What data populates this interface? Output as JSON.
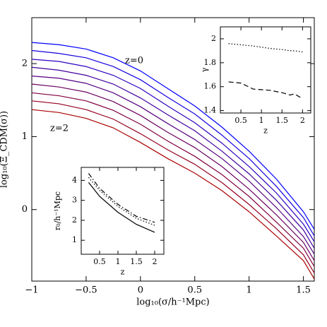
{
  "chart_data": [
    {
      "type": "line",
      "xlabel": "log₁₀(σ/h⁻¹Mpc)",
      "ylabel": "log₁₀(Ξ_CDM(σ))",
      "annotations": [
        "z=0",
        "z=2"
      ],
      "x": [
        -1,
        -0.75,
        -0.5,
        -0.25,
        0,
        0.25,
        0.5,
        0.75,
        1,
        1.25,
        1.5,
        1.6
      ],
      "series": [
        {
          "color": "#0000ff",
          "values": [
            2.29,
            2.26,
            2.2,
            2.08,
            1.9,
            1.66,
            1.42,
            1.13,
            0.8,
            0.42,
            -0.03,
            -0.27
          ]
        },
        {
          "color": "#1500df",
          "values": [
            2.18,
            2.14,
            2.08,
            1.96,
            1.78,
            1.54,
            1.31,
            1.02,
            0.7,
            0.32,
            -0.11,
            -0.36
          ]
        },
        {
          "color": "#2b00bf",
          "values": [
            2.06,
            2.03,
            1.96,
            1.84,
            1.66,
            1.42,
            1.19,
            0.91,
            0.59,
            0.23,
            -0.2,
            -0.44
          ]
        },
        {
          "color": "#40009f",
          "values": [
            1.95,
            1.91,
            1.84,
            1.72,
            1.53,
            1.3,
            1.08,
            0.8,
            0.49,
            0.13,
            -0.28,
            -0.53
          ]
        },
        {
          "color": "#550080",
          "values": [
            1.83,
            1.8,
            1.73,
            1.6,
            1.41,
            1.18,
            0.96,
            0.7,
            0.39,
            0.03,
            -0.37,
            -0.61
          ]
        },
        {
          "color": "#6a0060",
          "values": [
            1.72,
            1.68,
            1.61,
            1.48,
            1.29,
            1.06,
            0.85,
            0.59,
            0.28,
            -0.07,
            -0.45,
            -0.7
          ]
        },
        {
          "color": "#800040",
          "values": [
            1.6,
            1.56,
            1.49,
            1.36,
            1.17,
            0.94,
            0.73,
            0.48,
            0.18,
            -0.17,
            -0.53,
            -0.78
          ]
        },
        {
          "color": "#950020",
          "values": [
            1.49,
            1.45,
            1.37,
            1.24,
            1.04,
            0.82,
            0.62,
            0.37,
            0.07,
            -0.26,
            -0.62,
            -0.87
          ]
        },
        {
          "color": "#aa0000",
          "values": [
            1.37,
            1.33,
            1.25,
            1.12,
            0.92,
            0.7,
            0.5,
            0.26,
            -0.03,
            -0.36,
            -0.7,
            -0.95
          ]
        }
      ],
      "xlim": [
        -1,
        1.6
      ],
      "ylim": [
        -0.98,
        2.63
      ],
      "xticks": [
        {
          "value": -1,
          "label": "−1"
        },
        {
          "value": -0.5,
          "label": "−0.5"
        },
        0,
        0.5,
        1,
        1.5
      ],
      "yticks": [
        0,
        1,
        2
      ]
    },
    {
      "type": "line",
      "xlabel": "z",
      "ylabel": "γ",
      "x": [
        0.2,
        0.5,
        0.8,
        1.2,
        1.5,
        1.7,
        1.8,
        2
      ],
      "series": [
        {
          "color": "#000000",
          "style": "dotted",
          "values": [
            1.96,
            1.95,
            1.94,
            1.92,
            1.91,
            1.9,
            1.9,
            1.89
          ]
        },
        {
          "color": "#000000",
          "style": "dashed",
          "values": [
            1.64,
            1.63,
            1.58,
            1.57,
            1.55,
            1.53,
            1.54,
            1.5
          ]
        }
      ],
      "xlim": [
        0,
        2.2
      ],
      "ylim": [
        1.38,
        2.1
      ],
      "xticks": [
        0.5,
        1,
        1.5,
        2
      ],
      "yticks": [
        1.4,
        1.6,
        1.8,
        2
      ]
    },
    {
      "type": "line",
      "xlabel": "z",
      "ylabel": "r₀/h⁻¹Mpc",
      "x": [
        0.2,
        0.5,
        1,
        1.5,
        2
      ],
      "series": [
        {
          "color": "#000000",
          "style": "solid",
          "values": [
            3.9,
            3.2,
            2.4,
            1.8,
            1.4
          ]
        },
        {
          "color": "#000000",
          "style": "dotted",
          "values": [
            4.15,
            3.5,
            2.7,
            2.1,
            1.75
          ]
        },
        {
          "color": "#000000",
          "style": "dashdot",
          "values": [
            4.35,
            3.6,
            2.8,
            2.2,
            1.9
          ]
        }
      ],
      "xlim": [
        0,
        2.25
      ],
      "ylim": [
        0.3,
        4.65
      ],
      "xticks": [
        0.5,
        1,
        1.5,
        2
      ],
      "yticks": [
        1,
        2,
        3,
        4
      ]
    }
  ]
}
